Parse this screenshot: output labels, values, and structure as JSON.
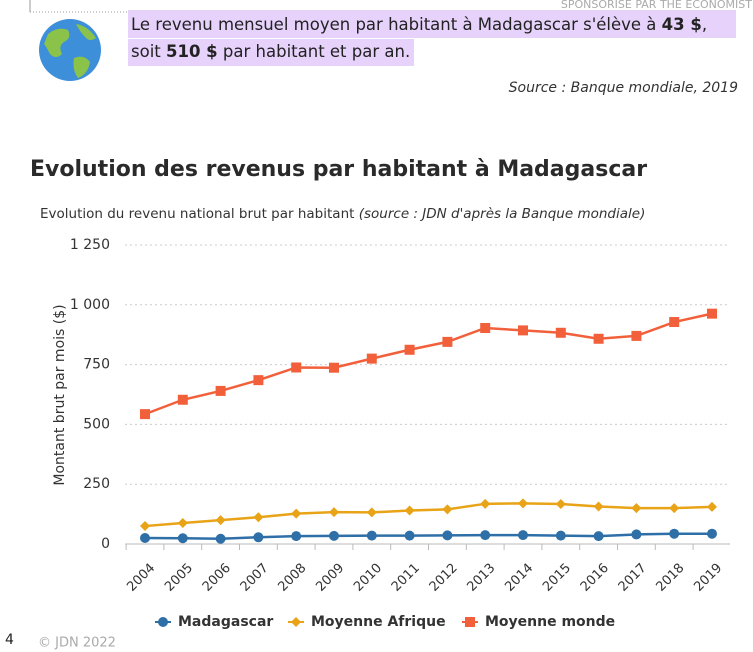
{
  "sponsor": "SPONSORISÉ PAR THE ECONOMIST",
  "intro": {
    "line1": [
      "Le revenu mensuel moyen par habitant à Madagascar s'élève à ",
      "43 $",
      ","
    ],
    "line2": [
      "soit ",
      "510 $",
      " par habitant et par an."
    ],
    "source": "Source : Banque mondiale, 2019"
  },
  "heading": "Evolution des revenus par habitant à Madagascar",
  "chart_data": {
    "type": "line",
    "subtitle": "Evolution du revenu national brut par habitant",
    "subtitle_note": "(source : JDN d'après la Banque mondiale)",
    "y_label": "Montant brut par mois ($)",
    "categories": [
      "2004",
      "2005",
      "2006",
      "2007",
      "2008",
      "2009",
      "2010",
      "2011",
      "2012",
      "2013",
      "2014",
      "2015",
      "2016",
      "2017",
      "2018",
      "2019"
    ],
    "series": [
      {
        "name": "Madagascar",
        "color": "#2e6fa7",
        "marker": "circle",
        "values": [
          25,
          24,
          22,
          28,
          33,
          34,
          35,
          35,
          36,
          37,
          37,
          35,
          33,
          40,
          43,
          43
        ]
      },
      {
        "name": "Moyenne Afrique",
        "color": "#e8a317",
        "marker": "diamond",
        "values": [
          75,
          88,
          100,
          112,
          127,
          133,
          132,
          140,
          145,
          168,
          170,
          167,
          157,
          150,
          150,
          155
        ]
      },
      {
        "name": "Moyenne monde",
        "color": "#f2603b",
        "marker": "square",
        "values": [
          543,
          603,
          640,
          685,
          738,
          737,
          775,
          812,
          845,
          903,
          893,
          883,
          858,
          870,
          928,
          963
        ]
      }
    ],
    "ylim": [
      0,
      1250
    ],
    "yticks": [
      0,
      250,
      500,
      750,
      {
        "value": 1000,
        "label": "1 000"
      },
      {
        "value": 1250,
        "label": "1 250"
      }
    ],
    "grid": true
  },
  "copyright": "© JDN 2022",
  "page_number": "4"
}
